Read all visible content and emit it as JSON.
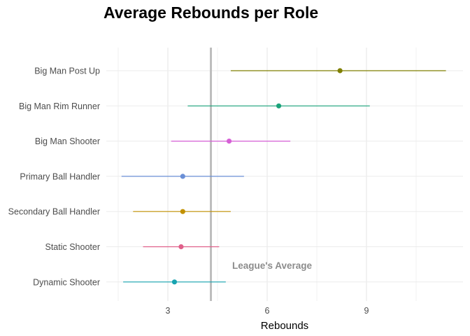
{
  "chart_data": {
    "type": "dot-range",
    "title": "Average Rebounds per Role",
    "xlabel": "Rebounds",
    "ylabel": "",
    "xlim": [
      1.2,
      11.5
    ],
    "xticks": [
      3,
      6,
      9
    ],
    "grid": true,
    "legend": "none",
    "reference_line": {
      "value": 4.3,
      "label": "League's Average",
      "color": "#bdbdbd"
    },
    "categories": [
      "Big Man Post Up",
      "Big Man Rim Runner",
      "Big Man Shooter",
      "Primary Ball Handler",
      "Secondary Ball Handler",
      "Static Shooter",
      "Dynamic Shooter"
    ],
    "series": [
      {
        "category": "Big Man Post Up",
        "mean": 8.2,
        "low": 4.9,
        "high": 11.4,
        "color": "#7f7f00"
      },
      {
        "category": "Big Man Rim Runner",
        "mean": 6.35,
        "low": 3.6,
        "high": 9.1,
        "color": "#1aa37a"
      },
      {
        "category": "Big Man Shooter",
        "mean": 4.85,
        "low": 3.1,
        "high": 6.7,
        "color": "#d65fd6"
      },
      {
        "category": "Primary Ball Handler",
        "mean": 3.45,
        "low": 1.6,
        "high": 5.3,
        "color": "#6a8fd6"
      },
      {
        "category": "Secondary Ball Handler",
        "mean": 3.45,
        "low": 1.95,
        "high": 4.9,
        "color": "#c29100"
      },
      {
        "category": "Static Shooter",
        "mean": 3.4,
        "low": 2.25,
        "high": 4.55,
        "color": "#e0608a"
      },
      {
        "category": "Dynamic Shooter",
        "mean": 3.2,
        "low": 1.65,
        "high": 4.75,
        "color": "#17a3b0"
      }
    ]
  }
}
